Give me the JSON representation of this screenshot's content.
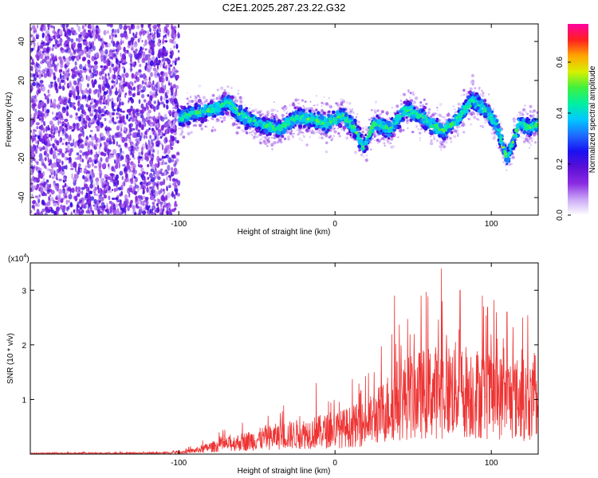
{
  "title": "C2E1.2025.287.23.22.G32",
  "chart_data": [
    {
      "type": "heatmap",
      "name": "spectrogram",
      "xlabel": "Height of straight line (km)",
      "ylabel": "Frequency (Hz)",
      "xlim": [
        -195,
        130
      ],
      "ylim": [
        -49,
        49
      ],
      "xticks": [
        -100,
        0,
        100
      ],
      "yticks": [
        -40,
        -20,
        0,
        20,
        40
      ],
      "colorbar": {
        "label": "Normalized spectral amplitude",
        "range": [
          0.0,
          0.75
        ],
        "ticks": [
          0.0,
          0.2,
          0.4,
          0.6
        ],
        "tick_labels": [
          "0.0",
          "0.2",
          "0.4",
          "0.6"
        ],
        "colors": [
          "#ffffff",
          "#c9a6f5",
          "#8a2be2",
          "#5b0fd6",
          "#1a10f0",
          "#1e6bff",
          "#00c8ff",
          "#00f0a0",
          "#40f040",
          "#d8f000",
          "#ffa500",
          "#ff2020",
          "#ff00a0"
        ]
      },
      "noise_region_x": [
        -195,
        -100
      ],
      "ridge": [
        {
          "x": -105,
          "y": 0
        },
        {
          "x": -95,
          "y": 2
        },
        {
          "x": -85,
          "y": 4
        },
        {
          "x": -75,
          "y": 6
        },
        {
          "x": -68,
          "y": 9
        },
        {
          "x": -62,
          "y": 3
        },
        {
          "x": -55,
          "y": 0
        },
        {
          "x": -45,
          "y": -3
        },
        {
          "x": -35,
          "y": -5
        },
        {
          "x": -25,
          "y": 1
        },
        {
          "x": -15,
          "y": 0
        },
        {
          "x": -5,
          "y": -2
        },
        {
          "x": 5,
          "y": 2
        },
        {
          "x": 12,
          "y": -4
        },
        {
          "x": 18,
          "y": -14
        },
        {
          "x": 25,
          "y": -2
        },
        {
          "x": 35,
          "y": -5
        },
        {
          "x": 45,
          "y": 5
        },
        {
          "x": 55,
          "y": 2
        },
        {
          "x": 62,
          "y": -3
        },
        {
          "x": 70,
          "y": -6
        },
        {
          "x": 78,
          "y": 0
        },
        {
          "x": 88,
          "y": 10
        },
        {
          "x": 95,
          "y": 6
        },
        {
          "x": 103,
          "y": -2
        },
        {
          "x": 110,
          "y": -20
        },
        {
          "x": 118,
          "y": -2
        },
        {
          "x": 125,
          "y": -4
        },
        {
          "x": 130,
          "y": -3
        }
      ]
    },
    {
      "type": "line",
      "name": "snr",
      "color": "#ee3333",
      "xlabel": "Height of straight line (km)",
      "ylabel": "SNR (10 * v/v)",
      "y_multiplier_label": "(x10",
      "y_multiplier_exp": "4",
      "xlim": [
        -195,
        130
      ],
      "ylim": [
        0,
        3.5
      ],
      "xticks": [
        -100,
        0,
        100
      ],
      "yticks": [
        1,
        2,
        3
      ],
      "envelope": [
        {
          "x": -195,
          "y": 0.02
        },
        {
          "x": -110,
          "y": 0.03
        },
        {
          "x": -100,
          "y": 0.05
        },
        {
          "x": -90,
          "y": 0.1
        },
        {
          "x": -80,
          "y": 0.2
        },
        {
          "x": -60,
          "y": 0.35
        },
        {
          "x": -40,
          "y": 0.5
        },
        {
          "x": -20,
          "y": 0.6
        },
        {
          "x": 0,
          "y": 0.7
        },
        {
          "x": 20,
          "y": 0.9
        },
        {
          "x": 30,
          "y": 1.2
        },
        {
          "x": 40,
          "y": 1.6
        },
        {
          "x": 60,
          "y": 1.8
        },
        {
          "x": 80,
          "y": 1.9
        },
        {
          "x": 100,
          "y": 1.7
        },
        {
          "x": 120,
          "y": 1.6
        },
        {
          "x": 130,
          "y": 1.5
        }
      ],
      "peaks": [
        {
          "x": -35,
          "y": 0.75
        },
        {
          "x": -12,
          "y": 1.3
        },
        {
          "x": 25,
          "y": 1.5
        },
        {
          "x": 38,
          "y": 2.9
        },
        {
          "x": 55,
          "y": 2.9
        },
        {
          "x": 68,
          "y": 3.4
        },
        {
          "x": 80,
          "y": 3.0
        },
        {
          "x": 95,
          "y": 2.7
        },
        {
          "x": 110,
          "y": 2.6
        },
        {
          "x": 120,
          "y": 2.5
        },
        {
          "x": 128,
          "y": 1.8
        }
      ]
    }
  ]
}
